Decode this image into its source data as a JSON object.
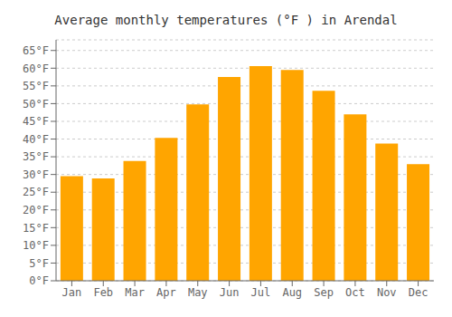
{
  "chart_data": {
    "type": "bar",
    "title": "Average monthly temperatures (°F ) in Arendal",
    "categories": [
      "Jan",
      "Feb",
      "Mar",
      "Apr",
      "May",
      "Jun",
      "Jul",
      "Aug",
      "Sep",
      "Oct",
      "Nov",
      "Dec"
    ],
    "values": [
      29.5,
      28.9,
      33.8,
      40.3,
      49.8,
      57.5,
      60.6,
      59.5,
      53.6,
      47.0,
      38.7,
      32.9
    ],
    "color": "#FFA500",
    "ylim": [
      0,
      68
    ],
    "yticks": [
      {
        "value": 0,
        "label": "0°F"
      },
      {
        "value": 5,
        "label": "5°F"
      },
      {
        "value": 10,
        "label": "10°F"
      },
      {
        "value": 15,
        "label": "15°F"
      },
      {
        "value": 20,
        "label": "20°F"
      },
      {
        "value": 25,
        "label": "25°F"
      },
      {
        "value": 30,
        "label": "30°F"
      },
      {
        "value": 35,
        "label": "35°F"
      },
      {
        "value": 40,
        "label": "40°F"
      },
      {
        "value": 45,
        "label": "45°F"
      },
      {
        "value": 50,
        "label": "50°F"
      },
      {
        "value": 55,
        "label": "55°F"
      },
      {
        "value": 60,
        "label": "60°F"
      },
      {
        "value": 65,
        "label": "65°F"
      }
    ],
    "grid": true
  }
}
